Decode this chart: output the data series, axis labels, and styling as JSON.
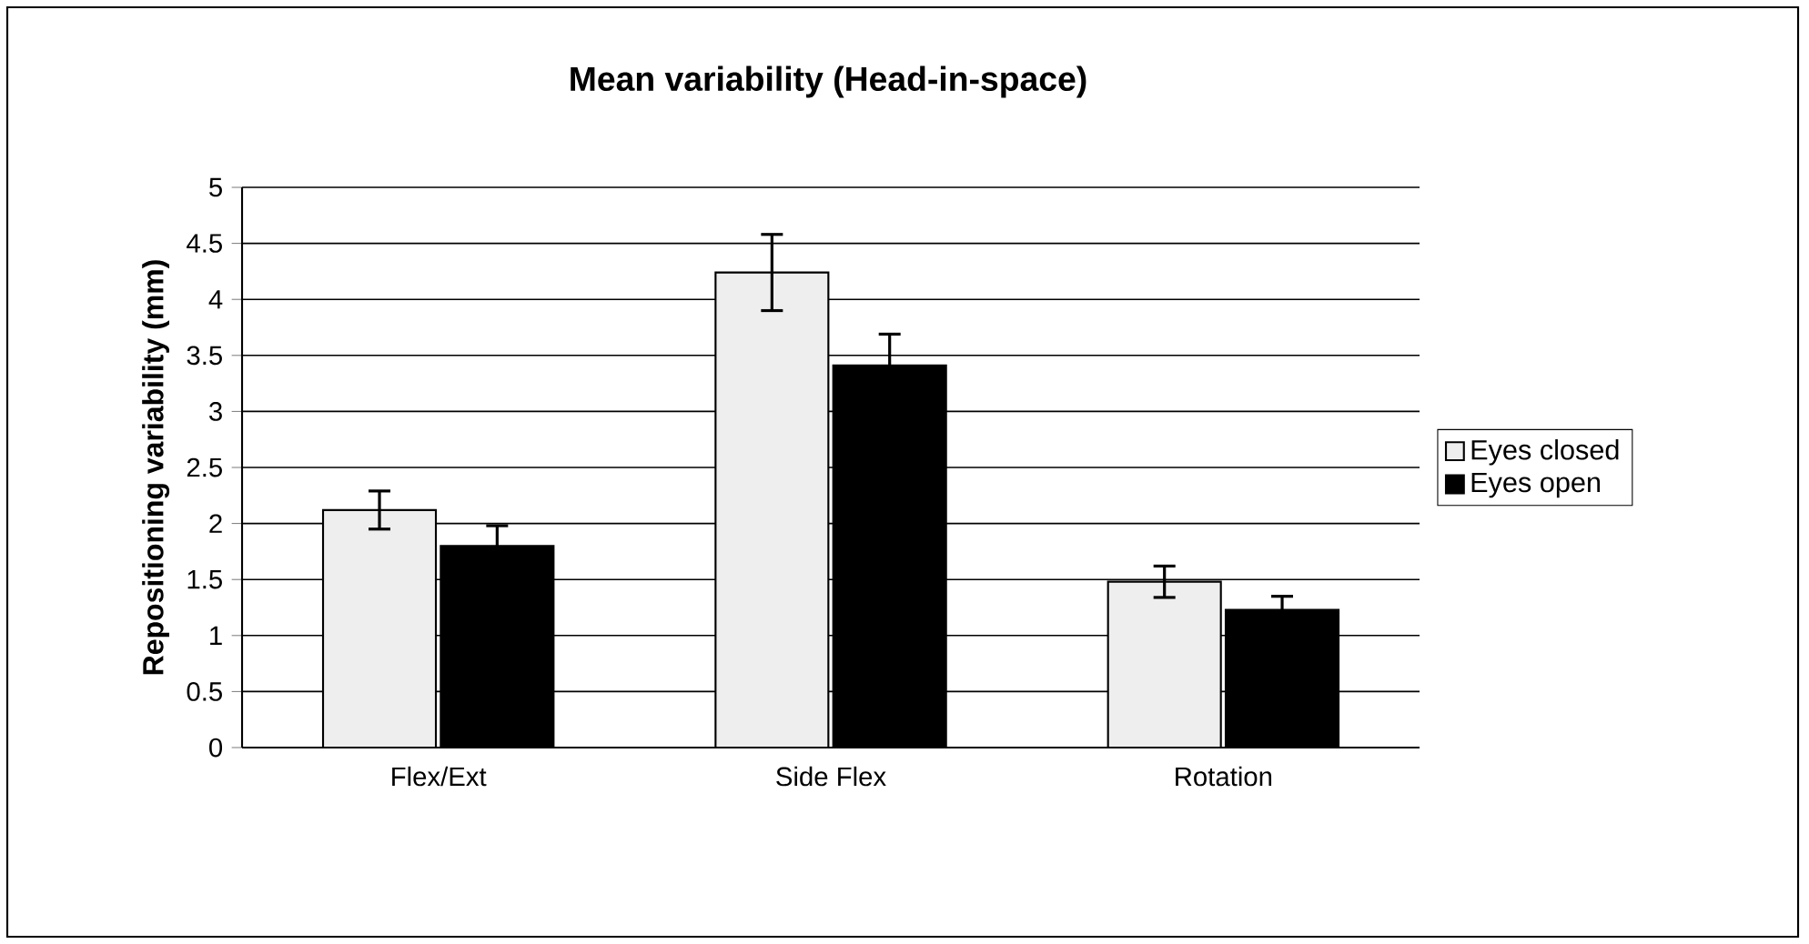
{
  "chart_data": {
    "type": "bar",
    "title": "Mean variability (Head-in-space)",
    "ylabel": "Repositioning variability (mm)",
    "categories": [
      "Flex/Ext",
      "Side Flex",
      "Rotation"
    ],
    "series": [
      {
        "name": "Eyes closed",
        "color": "#eeeeee",
        "values": [
          2.12,
          4.24,
          1.48
        ],
        "errors": [
          0.17,
          0.34,
          0.14
        ]
      },
      {
        "name": "Eyes open",
        "color": "#000000",
        "values": [
          1.8,
          3.41,
          1.23
        ],
        "errors": [
          0.18,
          0.28,
          0.12
        ]
      }
    ],
    "ylim": [
      0,
      5
    ],
    "yticks": [
      0,
      0.5,
      1,
      1.5,
      2,
      2.5,
      3,
      3.5,
      4,
      4.5,
      5
    ],
    "grid": "y",
    "legend": "right"
  }
}
